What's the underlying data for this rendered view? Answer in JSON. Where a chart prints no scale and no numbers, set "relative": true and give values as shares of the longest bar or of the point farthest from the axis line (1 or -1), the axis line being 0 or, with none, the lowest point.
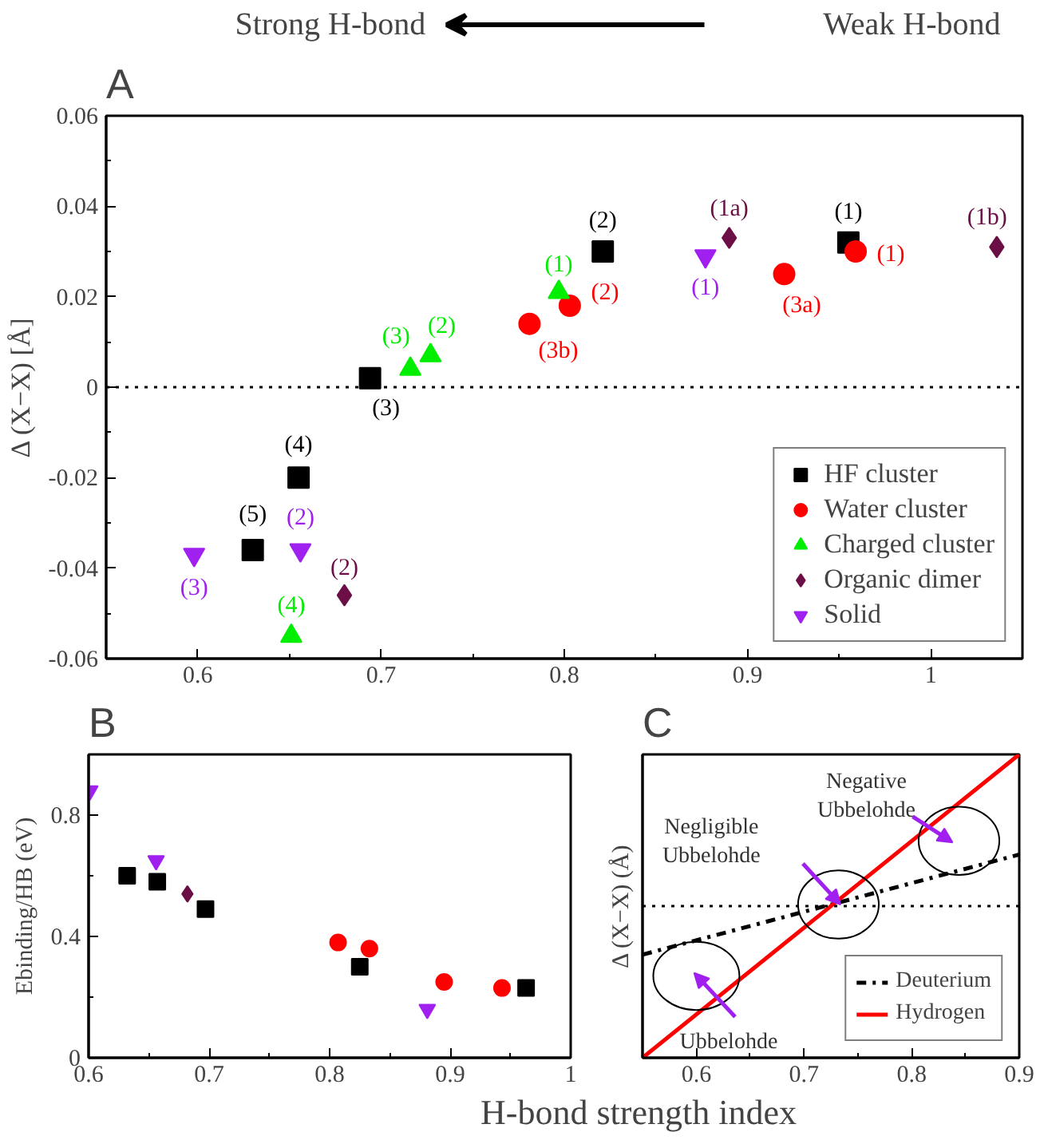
{
  "chart_data": [
    {
      "type": "scatter",
      "title": "A",
      "ylabel": "Δ (X−X) [Å]",
      "annotations": [
        "Strong H-bond",
        "Weak H-bond",
        {
          "text": "(5)",
          "x": 0.63,
          "y": -0.036
        },
        {
          "text": "(4)",
          "x": 0.655,
          "y": -0.02
        },
        {
          "text": "(3)",
          "x": 0.694,
          "y": 0.002
        },
        {
          "text": "(2)",
          "x": 0.821,
          "y": 0.03
        },
        {
          "text": "(1)",
          "x": 0.955,
          "y": 0.032
        },
        {
          "text": "(3b)",
          "x": 0.781,
          "y": 0.014
        },
        {
          "text": "(2)",
          "x": 0.803,
          "y": 0.018
        },
        {
          "text": "(3a)",
          "x": 0.92,
          "y": 0.025
        },
        {
          "text": "(1)",
          "x": 0.959,
          "y": 0.03
        },
        {
          "text": "(4)",
          "x": 0.651,
          "y": -0.055
        },
        {
          "text": "(3)",
          "x": 0.716,
          "y": 0.004
        },
        {
          "text": "(2)",
          "x": 0.727,
          "y": 0.007
        },
        {
          "text": "(1)",
          "x": 0.797,
          "y": 0.021
        },
        {
          "text": "(2)",
          "x": 0.68,
          "y": -0.046
        },
        {
          "text": "(1a)",
          "x": 0.89,
          "y": 0.033
        },
        {
          "text": "(1b)",
          "x": 1.036,
          "y": 0.031
        },
        {
          "text": "(3)",
          "x": 0.598,
          "y": -0.037
        },
        {
          "text": "(2)",
          "x": 0.656,
          "y": -0.036
        },
        {
          "text": "(1)",
          "x": 0.877,
          "y": 0.029
        }
      ],
      "xlim": [
        0.55,
        1.05
      ],
      "xticks": [
        0.6,
        0.7,
        0.8,
        0.9,
        1
      ],
      "ylim": [
        -0.06,
        0.06
      ],
      "yticks": [
        -0.06,
        -0.04,
        -0.02,
        0,
        0.02,
        0.04,
        0.06
      ],
      "grid": false,
      "legend": "bottom right",
      "ref_lines": [
        {
          "axis": "y",
          "value": 0,
          "line_style": "dotted",
          "color": "#000000"
        }
      ],
      "series": [
        {
          "name": "HF cluster",
          "color": "#000000",
          "marker": "square",
          "x": [
            0.63,
            0.655,
            0.694,
            0.821,
            0.955
          ],
          "values": [
            -0.036,
            -0.02,
            0.002,
            0.03,
            0.032
          ]
        },
        {
          "name": "Water cluster",
          "color": "#ff0000",
          "marker": "circle",
          "x": [
            0.781,
            0.803,
            0.92,
            0.959
          ],
          "values": [
            0.014,
            0.018,
            0.025,
            0.03
          ]
        },
        {
          "name": "Charged cluster",
          "color": "#00ee00",
          "marker": "triangle",
          "x": [
            0.651,
            0.716,
            0.727,
            0.797
          ],
          "values": [
            -0.055,
            0.004,
            0.007,
            0.021
          ]
        },
        {
          "name": "Organic dimer",
          "color": "#6b0f46",
          "marker": "diamond",
          "x": [
            0.68,
            0.89,
            1.036
          ],
          "values": [
            -0.046,
            0.033,
            0.031
          ]
        },
        {
          "name": "Solid",
          "color": "#a020f0",
          "x": [
            0.598,
            0.656,
            0.877
          ],
          "values": [
            -0.037,
            -0.036,
            0.029
          ]
        }
      ]
    },
    {
      "type": "scatter",
      "title": "B",
      "xlabel": "H-bond strength index",
      "ylabel": "Ebinding/HB (eV)",
      "xlim": [
        0.6,
        1.0
      ],
      "xticks": [
        0.6,
        0.7,
        0.8,
        0.9,
        1
      ],
      "ylim": [
        0,
        1.0
      ],
      "yticks": [
        0,
        0.4,
        0.8
      ],
      "grid": false,
      "series": [
        {
          "color": "#a020f0",
          "x": [
            0.601,
            0.656,
            0.881
          ],
          "values": [
            0.88,
            0.65,
            0.16
          ]
        },
        {
          "color": "#000000",
          "marker": "square",
          "x": [
            0.632,
            0.657,
            0.697,
            0.825,
            0.963
          ],
          "values": [
            0.6,
            0.58,
            0.49,
            0.3,
            0.23
          ]
        },
        {
          "color": "#6b0f46",
          "marker": "diamond",
          "x": [
            0.682
          ],
          "values": [
            0.54
          ]
        },
        {
          "color": "#ff0000",
          "marker": "circle",
          "x": [
            0.807,
            0.833,
            0.895,
            0.943
          ],
          "values": [
            0.38,
            0.36,
            0.25,
            0.23
          ]
        }
      ]
    },
    {
      "type": "line",
      "title": "C",
      "ylabel": "Δ (X−X) (Å)",
      "relative": true,
      "tick_labels": "x",
      "xlim": [
        0.55,
        0.9
      ],
      "xticks": [
        0.6,
        0.7,
        0.8,
        0.9
      ],
      "grid": false,
      "legend": "bottom right",
      "annotations": [
        "Ubbelohde",
        "Negligible\nUbbelohde",
        "Negative\nUbbelohde"
      ],
      "ref_lines": [
        {
          "axis": "y",
          "value": 0,
          "line_style": "dotted",
          "color": "#000000"
        }
      ],
      "series": [
        {
          "name": "Deuterium",
          "color": "#000000",
          "line_style": "dashdot",
          "x": [
            0.55,
            0.9
          ],
          "values": [
            -0.32,
            0.34
          ]
        },
        {
          "name": "Hydrogen",
          "color": "#ff0000",
          "line_style": "solid",
          "x": [
            0.55,
            0.9
          ],
          "values": [
            -1,
            1
          ]
        }
      ]
    }
  ]
}
